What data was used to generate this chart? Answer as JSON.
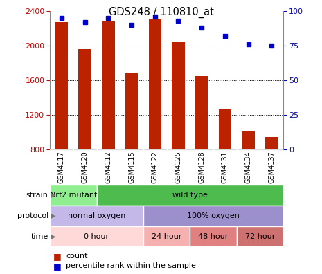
{
  "title": "GDS248 / 110810_at",
  "samples": [
    "GSM4117",
    "GSM4120",
    "GSM4112",
    "GSM4115",
    "GSM4122",
    "GSM4125",
    "GSM4128",
    "GSM4131",
    "GSM4134",
    "GSM4137"
  ],
  "counts": [
    2270,
    1960,
    2280,
    1690,
    2310,
    2050,
    1650,
    1270,
    1010,
    940
  ],
  "percentiles": [
    95,
    92,
    95,
    90,
    96,
    93,
    88,
    82,
    76,
    75
  ],
  "ylim_left": [
    800,
    2400
  ],
  "ylim_right": [
    0,
    100
  ],
  "yticks_left": [
    800,
    1200,
    1600,
    2000,
    2400
  ],
  "yticks_right": [
    0,
    25,
    50,
    75,
    100
  ],
  "grid_lines": [
    1200,
    1600,
    2000
  ],
  "strain_labels": [
    {
      "label": "Nrf2 mutant",
      "start": 0,
      "end": 2,
      "color": "#90ee90"
    },
    {
      "label": "wild type",
      "start": 2,
      "end": 10,
      "color": "#4dbb4d"
    }
  ],
  "protocol_labels": [
    {
      "label": "normal oxygen",
      "start": 0,
      "end": 4,
      "color": "#c4b8e8"
    },
    {
      "label": "100% oxygen",
      "start": 4,
      "end": 10,
      "color": "#9b8fcc"
    }
  ],
  "time_labels": [
    {
      "label": "0 hour",
      "start": 0,
      "end": 4,
      "color": "#ffd8d8"
    },
    {
      "label": "24 hour",
      "start": 4,
      "end": 6,
      "color": "#f5b0b0"
    },
    {
      "label": "48 hour",
      "start": 6,
      "end": 8,
      "color": "#e08080"
    },
    {
      "label": "72 hour",
      "start": 8,
      "end": 10,
      "color": "#cc7070"
    }
  ],
  "bar_color": "#bb2200",
  "dot_color": "#0000cc",
  "axis_left_color": "#cc0000",
  "axis_right_color": "#0000cc",
  "sample_bg_color": "#cccccc",
  "sample_border_color": "#aaaaaa"
}
